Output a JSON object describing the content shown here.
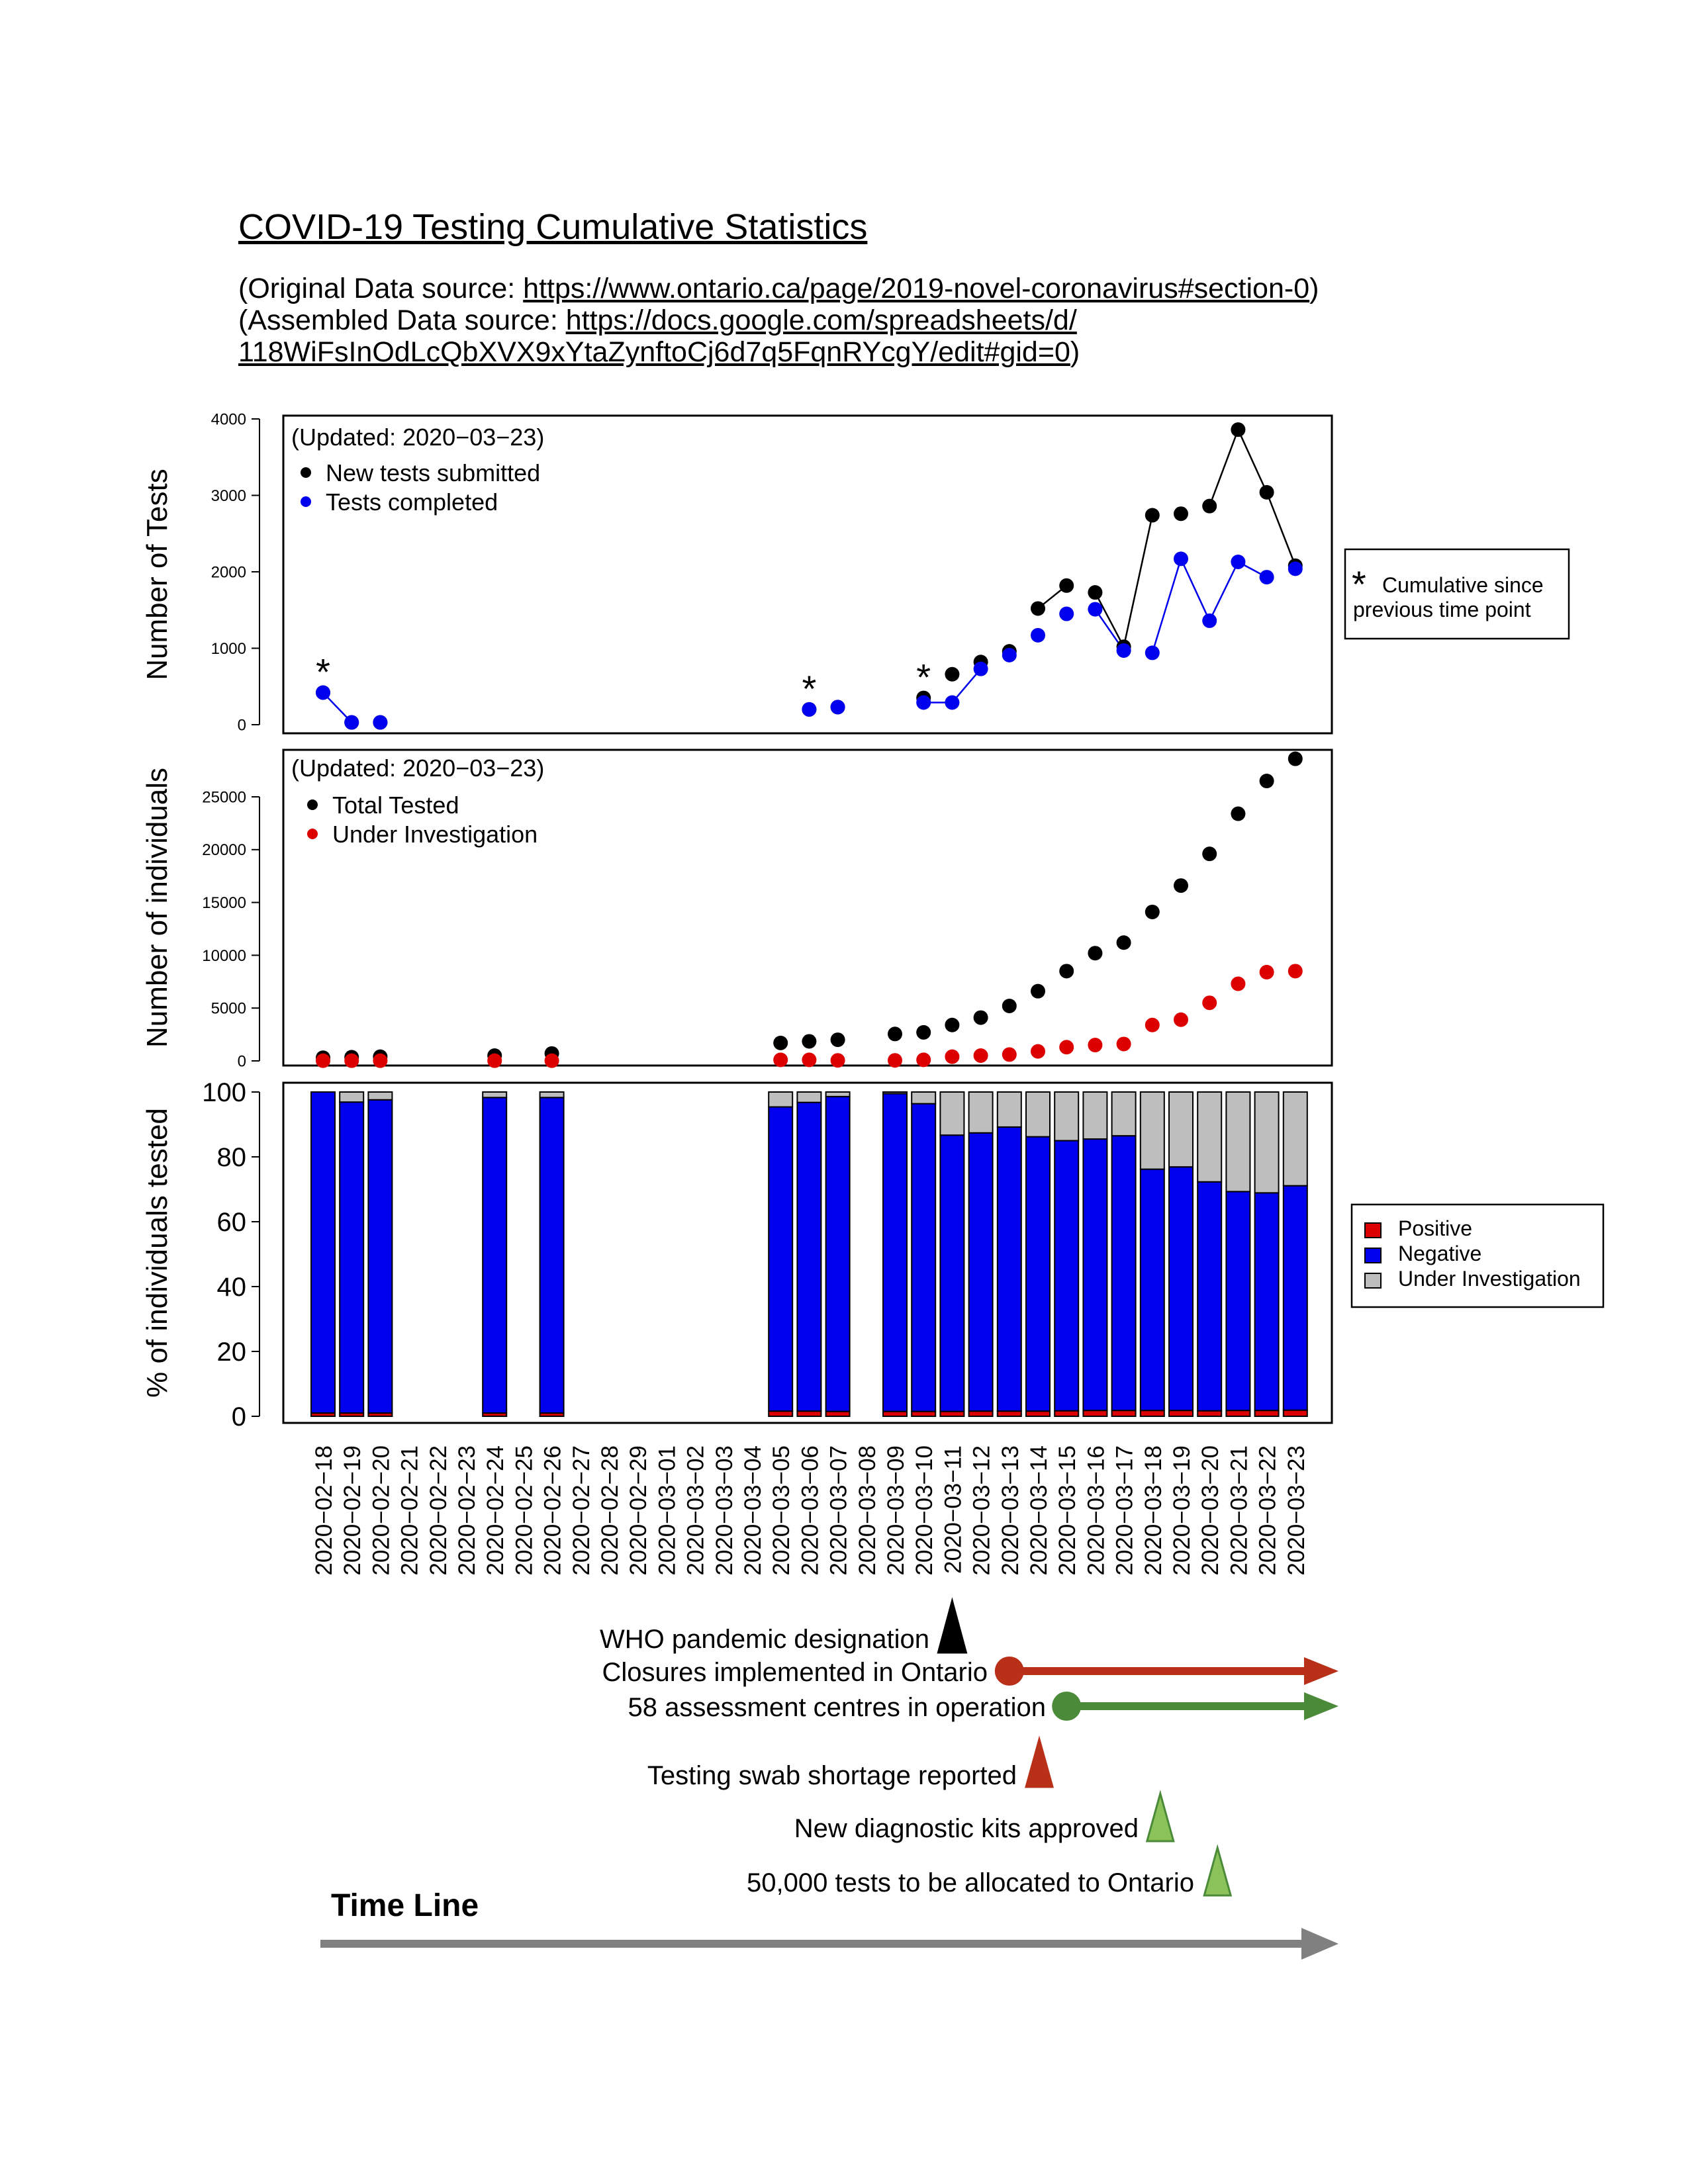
{
  "header": {
    "title": "COVID-19 Testing Cumulative Statistics",
    "source1_prefix": "(Original Data source: ",
    "source1_link": "https://www.ontario.ca/page/2019-novel-coronavirus#section-0",
    "source1_suffix": ")",
    "source2_prefix": "(Assembled Data source: ",
    "source2_link_a": "https://docs.google.com/spreadsheets/d/",
    "source2_link_b": "118WiFsInOdLcQbXVX9xYtaZynftoCj6d7q5FqnRYcgY/edit#gid=0",
    "source2_suffix": ")"
  },
  "colors": {
    "black": "#000000",
    "blue": "#0000ee",
    "red": "#dd0000",
    "gray": "#bebebe",
    "timeline_red": "#b83018",
    "timeline_green": "#4a8a38",
    "kit_green": "#8bc25a",
    "timeline_gray": "#808080"
  },
  "chart_data": [
    {
      "type": "scatter",
      "ylabel": "Number of Tests",
      "ylim": [
        0,
        4000
      ],
      "yticks": [
        0,
        1000,
        2000,
        3000,
        4000
      ],
      "annotation": "(Updated: 2020−03−23)",
      "legend": [
        "New tests submitted",
        "Tests completed"
      ],
      "star_dates": [
        "2020-02-18",
        "2020-03-06",
        "2020-03-10"
      ],
      "side_note": {
        "star": "*",
        "line1": "Cumulative since",
        "line2": "previous time point"
      },
      "series": [
        {
          "name": "New tests submitted",
          "color": "black",
          "points": [
            [
              "2020-02-18",
              420
            ],
            [
              "2020-02-19",
              30
            ],
            [
              "2020-02-20",
              30
            ],
            [
              "2020-03-06",
              200
            ],
            [
              "2020-03-07",
              230
            ],
            [
              "2020-03-10",
              350
            ],
            [
              "2020-03-11",
              660
            ],
            [
              "2020-03-12",
              820
            ],
            [
              "2020-03-13",
              960
            ],
            [
              "2020-03-14",
              1520
            ],
            [
              "2020-03-15",
              1820
            ],
            [
              "2020-03-16",
              1730
            ],
            [
              "2020-03-17",
              1020
            ],
            [
              "2020-03-18",
              2740
            ],
            [
              "2020-03-19",
              2760
            ],
            [
              "2020-03-20",
              2860
            ],
            [
              "2020-03-21",
              3860
            ],
            [
              "2020-03-22",
              3040
            ],
            [
              "2020-03-23",
              2080
            ]
          ]
        },
        {
          "name": "Tests completed",
          "color": "blue",
          "points": [
            [
              "2020-02-18",
              420
            ],
            [
              "2020-02-19",
              30
            ],
            [
              "2020-02-20",
              30
            ],
            [
              "2020-03-06",
              200
            ],
            [
              "2020-03-07",
              230
            ],
            [
              "2020-03-10",
              290
            ],
            [
              "2020-03-11",
              290
            ],
            [
              "2020-03-12",
              730
            ],
            [
              "2020-03-13",
              910
            ],
            [
              "2020-03-14",
              1170
            ],
            [
              "2020-03-15",
              1450
            ],
            [
              "2020-03-16",
              1510
            ],
            [
              "2020-03-17",
              970
            ],
            [
              "2020-03-18",
              940
            ],
            [
              "2020-03-19",
              2170
            ],
            [
              "2020-03-20",
              1360
            ],
            [
              "2020-03-21",
              2130
            ],
            [
              "2020-03-22",
              1930
            ],
            [
              "2020-03-23",
              2040
            ]
          ]
        }
      ],
      "lines": [
        {
          "color": "blue",
          "from": [
            "2020-02-18",
            420
          ],
          "to": [
            "2020-02-19",
            30
          ]
        },
        {
          "color": "blue",
          "from": [
            "2020-03-10",
            290
          ],
          "to": [
            "2020-03-11",
            290
          ]
        },
        {
          "color": "blue",
          "from": [
            "2020-03-11",
            290
          ],
          "to": [
            "2020-03-12",
            730
          ]
        },
        {
          "color": "black",
          "from": [
            "2020-03-14",
            1520
          ],
          "to": [
            "2020-03-15",
            1820
          ]
        },
        {
          "color": "black",
          "from": [
            "2020-03-16",
            1730
          ],
          "to": [
            "2020-03-17",
            1020
          ]
        },
        {
          "color": "black",
          "from": [
            "2020-03-17",
            1020
          ],
          "to": [
            "2020-03-18",
            2740
          ]
        },
        {
          "color": "black",
          "from": [
            "2020-03-20",
            2860
          ],
          "to": [
            "2020-03-21",
            3860
          ]
        },
        {
          "color": "black",
          "from": [
            "2020-03-21",
            3860
          ],
          "to": [
            "2020-03-22",
            3040
          ]
        },
        {
          "color": "black",
          "from": [
            "2020-03-22",
            3040
          ],
          "to": [
            "2020-03-23",
            2080
          ]
        },
        {
          "color": "blue",
          "from": [
            "2020-03-16",
            1510
          ],
          "to": [
            "2020-03-17",
            970
          ]
        },
        {
          "color": "blue",
          "from": [
            "2020-03-18",
            940
          ],
          "to": [
            "2020-03-19",
            2170
          ]
        },
        {
          "color": "blue",
          "from": [
            "2020-03-19",
            2170
          ],
          "to": [
            "2020-03-20",
            1360
          ]
        },
        {
          "color": "blue",
          "from": [
            "2020-03-20",
            1360
          ],
          "to": [
            "2020-03-21",
            2130
          ]
        },
        {
          "color": "blue",
          "from": [
            "2020-03-21",
            2130
          ],
          "to": [
            "2020-03-22",
            1930
          ]
        }
      ]
    },
    {
      "type": "scatter",
      "ylabel": "Number of individuals",
      "ylim": [
        0,
        30000
      ],
      "yticks": [
        0,
        5000,
        10000,
        15000,
        20000,
        25000
      ],
      "annotation": "(Updated: 2020−03−23)",
      "legend": [
        "Total Tested",
        "Under Investigation"
      ],
      "series": [
        {
          "name": "Total Tested",
          "color": "black",
          "points": [
            [
              "2020-02-18",
              300
            ],
            [
              "2020-02-19",
              350
            ],
            [
              "2020-02-20",
              400
            ],
            [
              "2020-02-24",
              500
            ],
            [
              "2020-02-26",
              700
            ],
            [
              "2020-03-05",
              1700
            ],
            [
              "2020-03-06",
              1850
            ],
            [
              "2020-03-07",
              2000
            ],
            [
              "2020-03-09",
              2550
            ],
            [
              "2020-03-10",
              2700
            ],
            [
              "2020-03-11",
              3400
            ],
            [
              "2020-03-12",
              4100
            ],
            [
              "2020-03-13",
              5200
            ],
            [
              "2020-03-14",
              6600
            ],
            [
              "2020-03-15",
              8500
            ],
            [
              "2020-03-16",
              10200
            ],
            [
              "2020-03-17",
              11200
            ],
            [
              "2020-03-18",
              14100
            ],
            [
              "2020-03-19",
              16600
            ],
            [
              "2020-03-20",
              19600
            ],
            [
              "2020-03-21",
              23400
            ],
            [
              "2020-03-22",
              26500
            ],
            [
              "2020-03-23",
              28600
            ]
          ]
        },
        {
          "name": "Under Investigation",
          "color": "red",
          "points": [
            [
              "2020-02-18",
              20
            ],
            [
              "2020-02-19",
              20
            ],
            [
              "2020-02-20",
              20
            ],
            [
              "2020-02-24",
              20
            ],
            [
              "2020-02-26",
              20
            ],
            [
              "2020-03-05",
              100
            ],
            [
              "2020-03-06",
              100
            ],
            [
              "2020-03-07",
              50
            ],
            [
              "2020-03-09",
              50
            ],
            [
              "2020-03-10",
              100
            ],
            [
              "2020-03-11",
              400
            ],
            [
              "2020-03-12",
              500
            ],
            [
              "2020-03-13",
              600
            ],
            [
              "2020-03-14",
              900
            ],
            [
              "2020-03-15",
              1300
            ],
            [
              "2020-03-16",
              1500
            ],
            [
              "2020-03-17",
              1600
            ],
            [
              "2020-03-18",
              3400
            ],
            [
              "2020-03-19",
              3900
            ],
            [
              "2020-03-20",
              5500
            ],
            [
              "2020-03-21",
              7300
            ],
            [
              "2020-03-22",
              8400
            ],
            [
              "2020-03-23",
              8500
            ]
          ]
        }
      ]
    },
    {
      "type": "bar",
      "stacked": true,
      "ylabel": "% of individuals tested",
      "ylim": [
        0,
        100
      ],
      "yticks": [
        0,
        20,
        40,
        60,
        80,
        100
      ],
      "legend": [
        "Positive",
        "Negative",
        "Under Investigation"
      ],
      "categories": [
        "2020−02−18",
        "2020−02−19",
        "2020−02−20",
        "2020−02−21",
        "2020−02−22",
        "2020−02−23",
        "2020−02−24",
        "2020−02−25",
        "2020−02−26",
        "2020−02−27",
        "2020−02−28",
        "2020−02−29",
        "2020−03−01",
        "2020−03−02",
        "2020−03−03",
        "2020−03−04",
        "2020−03−05",
        "2020−03−06",
        "2020−03−07",
        "2020−03−08",
        "2020−03−09",
        "2020−03−10",
        "2020−03−11",
        "2020−03−12",
        "2020−03−13",
        "2020−03−14",
        "2020−03−15",
        "2020−03−16",
        "2020−03−17",
        "2020−03−18",
        "2020−03−19",
        "2020−03−20",
        "2020−03−21",
        "2020−03−22",
        "2020−03−23"
      ],
      "series": [
        {
          "name": "Positive",
          "color": "red",
          "values": [
            1,
            1,
            1,
            null,
            null,
            null,
            1,
            null,
            1,
            null,
            null,
            null,
            null,
            null,
            null,
            null,
            1.6,
            1.6,
            1.5,
            null,
            1.5,
            1.5,
            1.5,
            1.6,
            1.6,
            1.6,
            1.7,
            1.8,
            1.8,
            1.8,
            1.8,
            1.7,
            1.8,
            1.8,
            1.9
          ]
        },
        {
          "name": "Negative",
          "color": "blue",
          "values": [
            99,
            95.9,
            96.6,
            null,
            null,
            null,
            97.3,
            null,
            97.3,
            null,
            null,
            null,
            null,
            null,
            null,
            null,
            93.8,
            95.2,
            97.1,
            null,
            98,
            94.9,
            85.2,
            85.8,
            87.6,
            84.6,
            83.3,
            83.7,
            84.7,
            74.4,
            75.1,
            70.6,
            67.5,
            67.1,
            69.2
          ]
        },
        {
          "name": "Under Investigation",
          "color": "gray",
          "values": [
            0,
            3.1,
            2.4,
            null,
            null,
            null,
            1.7,
            null,
            1.7,
            null,
            null,
            null,
            null,
            null,
            null,
            null,
            4.6,
            3.2,
            1.4,
            null,
            0.5,
            3.6,
            13.3,
            12.6,
            10.8,
            13.8,
            15,
            14.5,
            13.5,
            23.8,
            23.1,
            27.7,
            30.7,
            31.1,
            28.9
          ]
        }
      ]
    }
  ],
  "timeline": {
    "title": "Time Line",
    "events": [
      {
        "label": "WHO pandemic designation",
        "date": "2020-03-11",
        "marker": "triangle",
        "color": "black"
      },
      {
        "label": "Closures implemented in Ontario",
        "date": "2020-03-13",
        "marker": "arrow",
        "color": "timeline_red"
      },
      {
        "label": "58 assessment centres in operation",
        "date": "2020-03-15",
        "marker": "arrow",
        "color": "timeline_green"
      },
      {
        "label": "Testing swab shortage reported",
        "date": "2020-03-14",
        "marker": "triangle",
        "color": "timeline_red"
      },
      {
        "label": "New diagnostic kits approved",
        "date": "2020-03-18",
        "marker": "triangle",
        "color": "kit_green"
      },
      {
        "label": "50,000 tests to be allocated to Ontario",
        "date": "2020-03-20",
        "marker": "triangle",
        "color": "kit_green"
      }
    ]
  }
}
